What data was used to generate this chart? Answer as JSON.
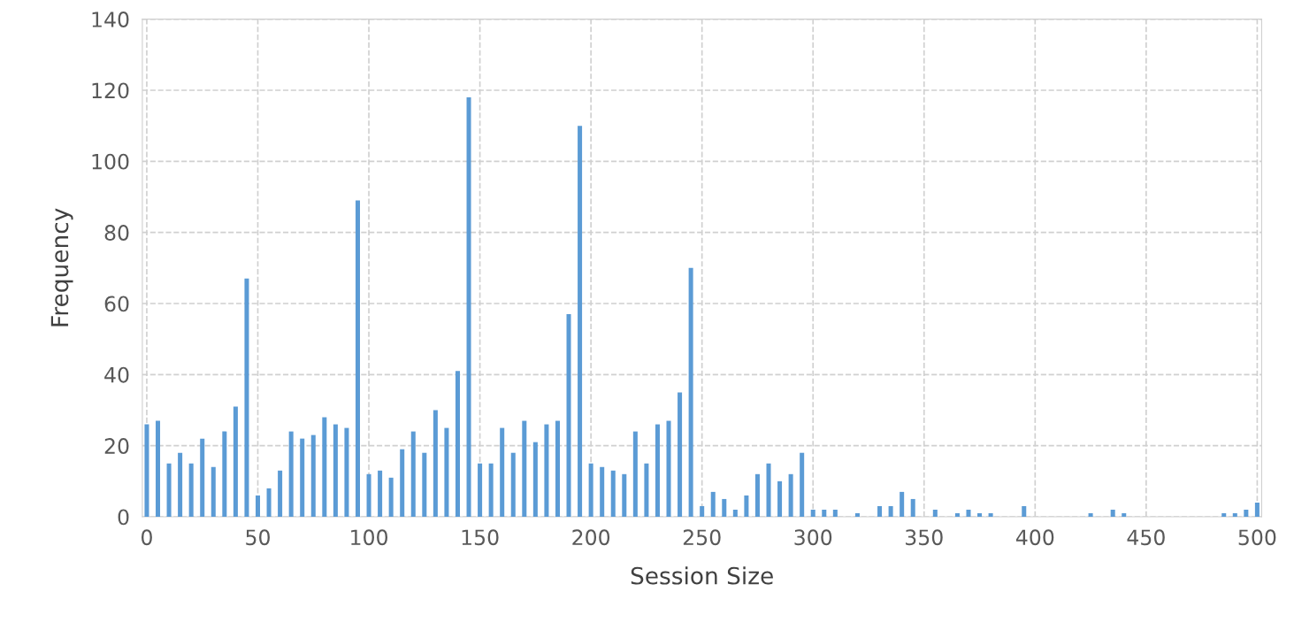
{
  "chart_data": {
    "type": "bar",
    "xlabel": "Session Size",
    "ylabel": "Frequency",
    "x": [
      0,
      5,
      10,
      15,
      20,
      25,
      30,
      35,
      40,
      45,
      50,
      55,
      60,
      65,
      70,
      75,
      80,
      85,
      90,
      95,
      100,
      105,
      110,
      115,
      120,
      125,
      130,
      135,
      140,
      145,
      150,
      155,
      160,
      165,
      170,
      175,
      180,
      185,
      190,
      195,
      200,
      205,
      210,
      215,
      220,
      225,
      230,
      235,
      240,
      245,
      250,
      255,
      260,
      265,
      270,
      275,
      280,
      285,
      290,
      295,
      300,
      305,
      310,
      315,
      320,
      325,
      330,
      335,
      340,
      345,
      350,
      355,
      360,
      365,
      370,
      375,
      380,
      385,
      390,
      395,
      400,
      405,
      410,
      415,
      420,
      425,
      430,
      435,
      440,
      445,
      450,
      455,
      460,
      465,
      470,
      475,
      480,
      485,
      490,
      495,
      500
    ],
    "values": [
      26,
      27,
      15,
      18,
      15,
      22,
      14,
      24,
      31,
      67,
      6,
      8,
      13,
      24,
      22,
      23,
      28,
      26,
      25,
      89,
      12,
      13,
      11,
      19,
      24,
      18,
      30,
      25,
      41,
      118,
      15,
      15,
      25,
      18,
      27,
      21,
      26,
      27,
      57,
      110,
      15,
      14,
      13,
      12,
      24,
      15,
      26,
      27,
      35,
      70,
      3,
      7,
      5,
      2,
      6,
      12,
      15,
      10,
      12,
      18,
      2,
      2,
      2,
      0,
      1,
      0,
      3,
      3,
      7,
      5,
      0,
      2,
      0,
      1,
      2,
      1,
      1,
      0,
      0,
      3,
      0,
      0,
      0,
      0,
      0,
      1,
      0,
      2,
      1,
      0,
      0,
      0,
      0,
      0,
      0,
      0,
      0,
      1,
      1,
      2,
      4
    ],
    "color": "#5b9bd5",
    "xlim": [
      -2,
      502
    ],
    "xticks": [
      0,
      50,
      100,
      150,
      200,
      250,
      300,
      350,
      400,
      450,
      500
    ],
    "ylim": [
      0,
      140
    ],
    "yticks": [
      0,
      20,
      40,
      60,
      80,
      100,
      120,
      140
    ],
    "grid": true
  }
}
